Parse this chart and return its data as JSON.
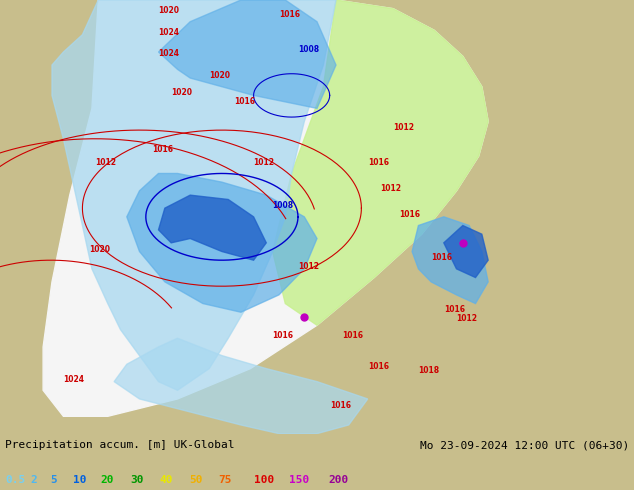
{
  "title_left": "Precipitation accum. [m] UK-Global",
  "title_right": "Mo 23-09-2024 12:00 UTC (06+30)",
  "colorbar_values": [
    "0.5",
    "2",
    "5",
    "10",
    "20",
    "30",
    "40",
    "50",
    "75",
    "100",
    "150",
    "200"
  ],
  "colorbar_colors": [
    "#78d0f0",
    "#50b8f0",
    "#2890e8",
    "#0060e0",
    "#00b400",
    "#009600",
    "#e8e800",
    "#f0b000",
    "#f06000",
    "#dc0000",
    "#c800c8",
    "#960096"
  ],
  "bg_color": "#c8be8c",
  "land_outside_color": "#c8be8c",
  "domain_bg_color": "#f5f5f5",
  "green_area_color": "#c8f090",
  "light_blue_color": "#a8d8f0",
  "mid_blue_color": "#60b0e8",
  "dark_blue_color": "#2060c8",
  "deep_blue_color": "#0030a0",
  "purple_color": "#c000c0",
  "text_color": "#000000",
  "fig_width": 6.34,
  "fig_height": 4.9,
  "dpi": 100,
  "domain_points_x": [
    0.155,
    0.285,
    0.415,
    0.53,
    0.62,
    0.685,
    0.73,
    0.76,
    0.77,
    0.755,
    0.72,
    0.665,
    0.59,
    0.5,
    0.395,
    0.28,
    0.17,
    0.1,
    0.068,
    0.068,
    0.082,
    0.11,
    0.145
  ],
  "domain_points_y": [
    1.0,
    1.0,
    1.0,
    1.0,
    0.98,
    0.93,
    0.87,
    0.8,
    0.72,
    0.64,
    0.56,
    0.46,
    0.36,
    0.25,
    0.15,
    0.08,
    0.04,
    0.04,
    0.1,
    0.2,
    0.35,
    0.55,
    0.75
  ]
}
